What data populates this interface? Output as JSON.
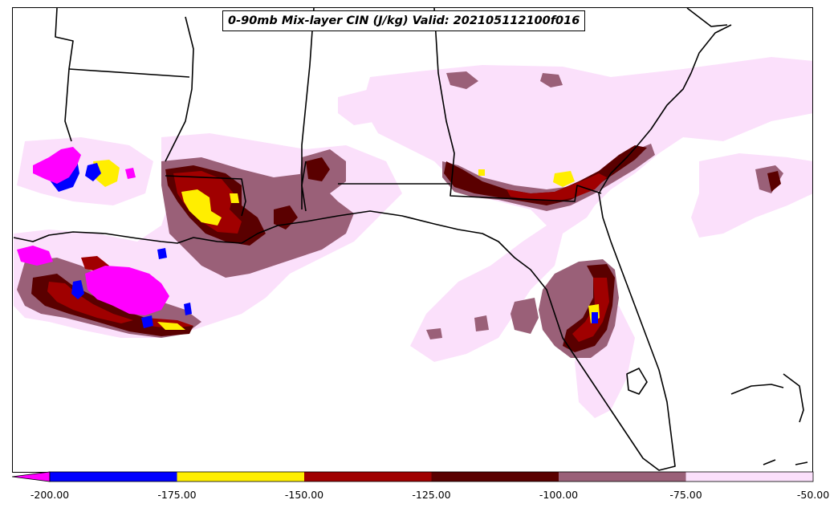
{
  "title": "0-90mb Mix-layer CIN (J/kg) Valid: 202105112100f016",
  "colorbar": {
    "ticks": [
      "-200.00",
      "-175.00",
      "-150.00",
      "-125.00",
      "-100.00",
      "-75.00",
      "-50.00"
    ],
    "bins": [
      {
        "color": "#ff00ff",
        "range": "< -200"
      },
      {
        "color": "#0000ff",
        "range": "-200 to -175"
      },
      {
        "color": "#ffee00",
        "range": "-175 to -150"
      },
      {
        "color": "#a00000",
        "range": "-150 to -125"
      },
      {
        "color": "#5a0000",
        "range": "-125 to -100"
      },
      {
        "color": "#9a6078",
        "range": "-100 to -75"
      },
      {
        "color": "#fbe0fb",
        "range": "-75 to -50"
      }
    ]
  }
}
